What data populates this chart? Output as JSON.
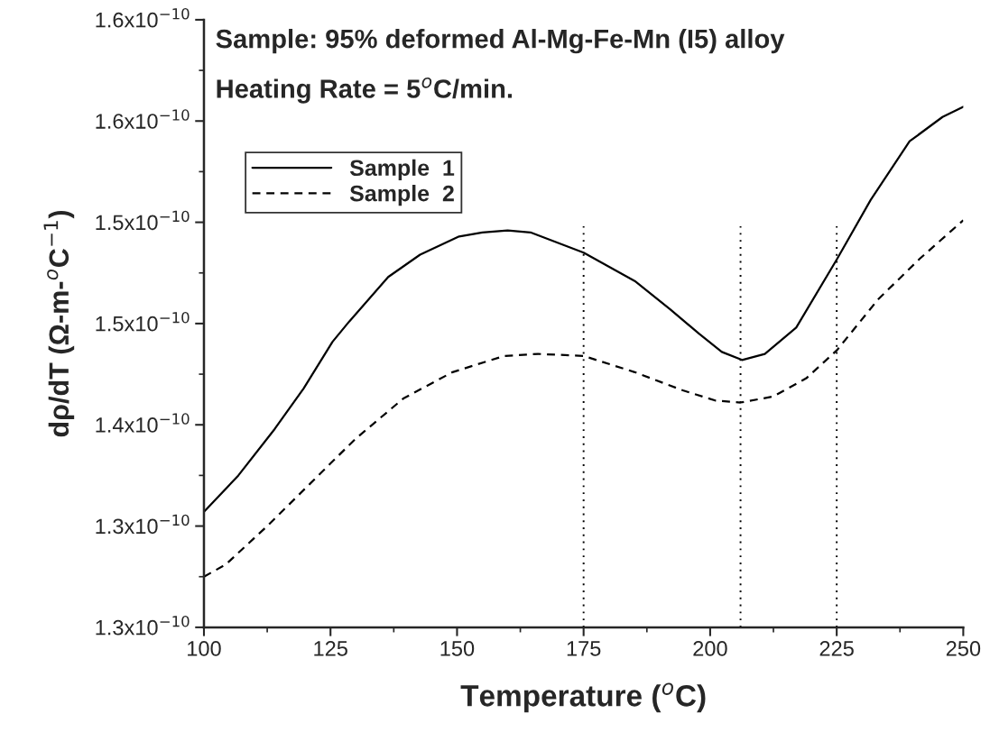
{
  "chart_data": {
    "type": "line",
    "title": "Sample: 95% deformed Al-Mg-Fe-Mn (I5) alloy",
    "subtitle": "Heating Rate = 5$^{o}$C/min.",
    "xlabel": "Temperature ($^{o}$C)",
    "ylabel": "dρ/dT (Ω-m-$^{o}$C$^{−1}$)",
    "xlim": [
      100,
      250
    ],
    "xticks": [
      100,
      125,
      150,
      175,
      200,
      225,
      250
    ],
    "ylim": [
      1.3e-10,
      1.6e-10
    ],
    "yticks": [
      {
        "value": 1.3e-10,
        "label": "1.3x10$^{−10}$"
      },
      {
        "value": 1.35e-10,
        "label": "1.3x10$^{−10}$"
      },
      {
        "value": 1.4e-10,
        "label": "1.4x10$^{−10}$"
      },
      {
        "value": 1.45e-10,
        "label": "1.5x10$^{−10}$"
      },
      {
        "value": 1.5e-10,
        "label": "1.5x10$^{−10}$"
      },
      {
        "value": 1.55e-10,
        "label": "1.6x10$^{−10}$"
      },
      {
        "value": 1.6e-10,
        "label": "1.6x10$^{−10}$"
      }
    ],
    "legend": "top left",
    "grid": false,
    "series": [
      {
        "name": "Sample  1",
        "color": "#000000",
        "line_style": "solid",
        "x": [
          100,
          106.8,
          114,
          119.7,
          125.4,
          128.7,
          136.4,
          142.7,
          150.4,
          155,
          160,
          164.5,
          175,
          185.1,
          192.1,
          197.8,
          202.3,
          206.3,
          210.8,
          217,
          225.1,
          231.7,
          239.4,
          245.9,
          250
        ],
        "values": [
          1.357e-10,
          1.375e-10,
          1.398e-10,
          1.418e-10,
          1.441e-10,
          1.451e-10,
          1.473e-10,
          1.484e-10,
          1.493e-10,
          1.495e-10,
          1.496e-10,
          1.495e-10,
          1.485e-10,
          1.471e-10,
          1.457e-10,
          1.445e-10,
          1.436e-10,
          1.432e-10,
          1.435e-10,
          1.448e-10,
          1.482e-10,
          1.511e-10,
          1.54e-10,
          1.552e-10,
          1.557e-10
        ]
      },
      {
        "name": "Sample  2",
        "color": "#000000",
        "line_style": "dashed",
        "x": [
          100,
          104.3,
          112.5,
          121,
          129.9,
          139.4,
          149.1,
          159.3,
          166,
          175,
          185.1,
          194.6,
          201,
          206,
          212.5,
          219,
          225.1,
          233.2,
          241.4,
          250
        ],
        "values": [
          1.325e-10,
          1.331e-10,
          1.35e-10,
          1.371e-10,
          1.393e-10,
          1.413e-10,
          1.426e-10,
          1.434e-10,
          1.435e-10,
          1.434e-10,
          1.426e-10,
          1.417e-10,
          1.412e-10,
          1.411e-10,
          1.414e-10,
          1.423e-10,
          1.437e-10,
          1.462e-10,
          1.482e-10,
          1.501e-10
        ]
      }
    ],
    "ref_lines": [
      {
        "axis": "x",
        "value": 175,
        "line_style": "dotted",
        "color": "#000000"
      },
      {
        "axis": "x",
        "value": 206,
        "line_style": "dotted",
        "color": "#000000"
      },
      {
        "axis": "x",
        "value": 225,
        "line_style": "dotted",
        "color": "#000000"
      }
    ]
  }
}
